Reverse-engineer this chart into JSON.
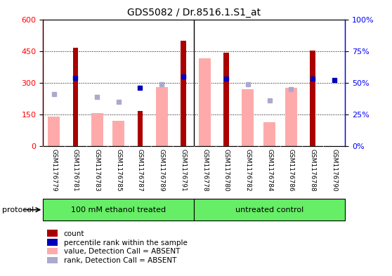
{
  "title": "GDS5082 / Dr.8516.1.S1_at",
  "samples": [
    "GSM1176779",
    "GSM1176781",
    "GSM1176783",
    "GSM1176785",
    "GSM1176787",
    "GSM1176789",
    "GSM1176791",
    "GSM1176778",
    "GSM1176780",
    "GSM1176782",
    "GSM1176784",
    "GSM1176786",
    "GSM1176788",
    "GSM1176790"
  ],
  "count_red": [
    0,
    465,
    0,
    0,
    168,
    0,
    500,
    0,
    442,
    0,
    0,
    0,
    453,
    0
  ],
  "pink_value": [
    140,
    0,
    158,
    120,
    0,
    280,
    0,
    415,
    0,
    270,
    115,
    275,
    0,
    0
  ],
  "blue_rank_pct": [
    0,
    54,
    0,
    0,
    46,
    0,
    55,
    0,
    53,
    0,
    0,
    0,
    53,
    52
  ],
  "lavender_rank_pct": [
    41,
    0,
    39,
    35,
    0,
    49,
    0,
    0,
    0,
    49,
    36,
    45,
    0,
    0
  ],
  "group1_label": "100 mM ethanol treated",
  "group2_label": "untreated control",
  "group1_count": 7,
  "group2_count": 7,
  "ylim_left": [
    0,
    600
  ],
  "ylim_right": [
    0,
    100
  ],
  "left_yticks": [
    0,
    150,
    300,
    450,
    600
  ],
  "right_yticks": [
    0,
    25,
    50,
    75,
    100
  ],
  "red_color": "#aa0000",
  "pink_color": "#ffaaaa",
  "blue_color": "#0000bb",
  "lavender_color": "#aaaacc",
  "green_color": "#66ee66",
  "gray_bg": "#d8d8d8",
  "protocol_label": "protocol"
}
